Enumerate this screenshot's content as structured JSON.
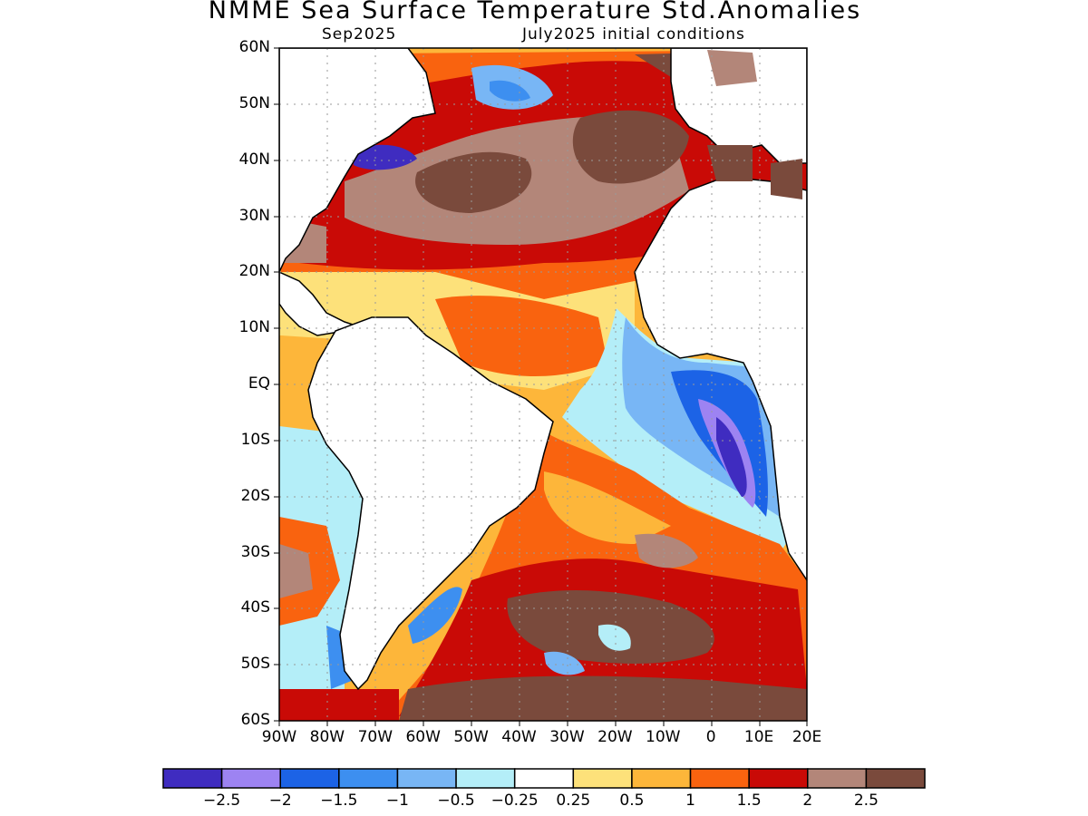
{
  "title": "NMME Sea Surface Temperature Std.Anomalies",
  "subtitle_left": "Sep2025",
  "subtitle_right": "July2025 initial conditions",
  "lat_labels": [
    "60N",
    "50N",
    "40N",
    "30N",
    "20N",
    "10N",
    "EQ",
    "10S",
    "20S",
    "30S",
    "40S",
    "50S",
    "60S"
  ],
  "lon_labels": [
    "90W",
    "80W",
    "70W",
    "60W",
    "50W",
    "40W",
    "30W",
    "20W",
    "10W",
    "0",
    "10E",
    "20E"
  ],
  "colorbar": {
    "colors": [
      "#3f2cc0",
      "#9d83f2",
      "#1c63e6",
      "#3d8ff0",
      "#78b6f5",
      "#b4eef8",
      "#ffffff",
      "#fde17a",
      "#fdb63a",
      "#f9630f",
      "#c90a06",
      "#b38679",
      "#7a4a3c"
    ],
    "labels": [
      "−2.5",
      "−2",
      "−1.5",
      "−1",
      "−0.5",
      "−0.25",
      "0.25",
      "0.5",
      "1",
      "1.5",
      "2",
      "2.5"
    ]
  }
}
